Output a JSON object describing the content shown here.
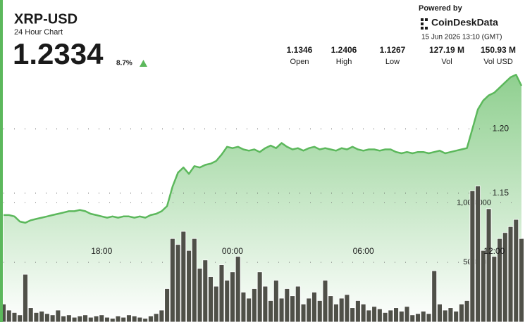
{
  "header": {
    "title": "XRP-USD",
    "subtitle": "24 Hour Chart",
    "price": "1.2334",
    "change": "8.7%",
    "powered_by": "Powered by",
    "brand": "CoinDeskData",
    "timestamp": "15 Jun 2026 13:10 (GMT)"
  },
  "stats": [
    {
      "value": "1.1346",
      "label": "Open"
    },
    {
      "value": "1.2406",
      "label": "High"
    },
    {
      "value": "1.1267",
      "label": "Low"
    },
    {
      "value": "127.19 M",
      "label": "Vol"
    },
    {
      "value": "150.93 M",
      "label": "Vol USD"
    }
  ],
  "chart_data": {
    "type": "line",
    "series": [
      {
        "color": "#5cb85c",
        "values": [
          1.133,
          1.133,
          1.132,
          1.128,
          1.127,
          1.129,
          1.13,
          1.131,
          1.132,
          1.133,
          1.134,
          1.135,
          1.136,
          1.136,
          1.137,
          1.136,
          1.134,
          1.133,
          1.132,
          1.131,
          1.132,
          1.131,
          1.132,
          1.132,
          1.131,
          1.132,
          1.131,
          1.133,
          1.134,
          1.136,
          1.14,
          1.155,
          1.166,
          1.17,
          1.165,
          1.171,
          1.17,
          1.172,
          1.173,
          1.175,
          1.18,
          1.186,
          1.185,
          1.186,
          1.184,
          1.183,
          1.184,
          1.182,
          1.185,
          1.187,
          1.185,
          1.189,
          1.186,
          1.184,
          1.185,
          1.183,
          1.185,
          1.186,
          1.184,
          1.185,
          1.184,
          1.183,
          1.185,
          1.184,
          1.186,
          1.184,
          1.183,
          1.184,
          1.184,
          1.183,
          1.184,
          1.184,
          1.182,
          1.181,
          1.182,
          1.181,
          1.182,
          1.182,
          1.181,
          1.182,
          1.183,
          1.181,
          1.182,
          1.183,
          1.184,
          1.185,
          1.2,
          1.215,
          1.222,
          1.226,
          1.228,
          1.232,
          1.236,
          1.24,
          1.242,
          1.2334
        ]
      },
      {
        "type": "bar",
        "axis": "y2",
        "color": "#4f5048",
        "values": [
          150000,
          100000,
          80000,
          60000,
          400000,
          120000,
          80000,
          90000,
          70000,
          60000,
          100000,
          50000,
          60000,
          40000,
          50000,
          60000,
          40000,
          50000,
          60000,
          40000,
          30000,
          50000,
          40000,
          60000,
          50000,
          40000,
          30000,
          50000,
          70000,
          100000,
          280000,
          700000,
          650000,
          760000,
          600000,
          700000,
          450000,
          520000,
          380000,
          300000,
          480000,
          350000,
          420000,
          550000,
          250000,
          200000,
          280000,
          420000,
          300000,
          180000,
          350000,
          200000,
          280000,
          220000,
          300000,
          150000,
          200000,
          250000,
          180000,
          350000,
          220000,
          150000,
          200000,
          230000,
          120000,
          180000,
          150000,
          100000,
          130000,
          110000,
          80000,
          100000,
          120000,
          90000,
          130000,
          60000,
          70000,
          90000,
          70000,
          430000,
          150000,
          100000,
          120000,
          90000,
          150000,
          180000,
          1100000,
          1140000,
          600000,
          950000,
          550000,
          700000,
          750000,
          800000,
          860000,
          700000
        ]
      }
    ],
    "xlim": [
      0,
      95
    ],
    "xticks": [
      {
        "value": 18,
        "label": "18:00"
      },
      {
        "value": 42,
        "label": "00:00"
      },
      {
        "value": 66,
        "label": "06:00"
      },
      {
        "value": 90,
        "label": "12:00"
      }
    ],
    "ylim": [
      1.05,
      1.3
    ],
    "yticks": [
      {
        "value": 1.2,
        "label": "1.20"
      },
      {
        "value": 1.15,
        "label": "1.15"
      }
    ],
    "y2lim": [
      0,
      2700000
    ],
    "y2ticks": [
      {
        "value": 1000000,
        "label": "1,000,000"
      },
      {
        "value": 500000,
        "label": "500,000"
      }
    ],
    "grid": true
  }
}
